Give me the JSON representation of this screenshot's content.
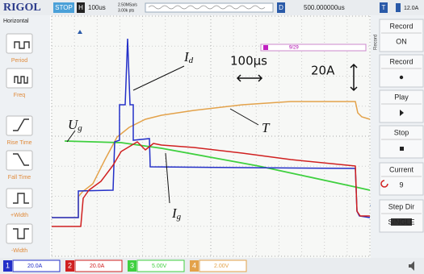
{
  "header": {
    "brand": "RIGOL",
    "status": "STOP",
    "timebase_label": "H",
    "timebase": "100us",
    "sample_rate": "2.50MSa/s",
    "points": "3.00k pts",
    "delay_label": "D",
    "delay": "500.000000us",
    "trigger_label": "T",
    "trigger_level": "12.0A"
  },
  "left_menu": {
    "title": "Horizontal",
    "items": [
      "Period",
      "Freq",
      "Rise Time",
      "Fall Time",
      "+Width",
      "-Width"
    ]
  },
  "right_menu": {
    "side_label": "Record",
    "items": [
      {
        "label": "Record",
        "value": "ON"
      },
      {
        "label": "Record"
      },
      {
        "label": "Play"
      },
      {
        "label": "Stop"
      },
      {
        "label": "Current",
        "value": "9"
      },
      {
        "label": "Step Dir",
        "value": "SINGLE"
      }
    ]
  },
  "frame_counter": "9/29",
  "annotations": [
    {
      "text": "I",
      "sub": "d"
    },
    {
      "text": "100µs"
    },
    {
      "text": "20A"
    },
    {
      "text": "U",
      "sub": "g"
    },
    {
      "text": "T"
    },
    {
      "text": "I",
      "sub": "g"
    }
  ],
  "channels": [
    {
      "number": "1",
      "scale": "20.0A"
    },
    {
      "number": "2",
      "scale": "20.0A"
    },
    {
      "number": "3",
      "scale": "5.00V"
    },
    {
      "number": "4",
      "scale": "2.00V"
    }
  ]
}
